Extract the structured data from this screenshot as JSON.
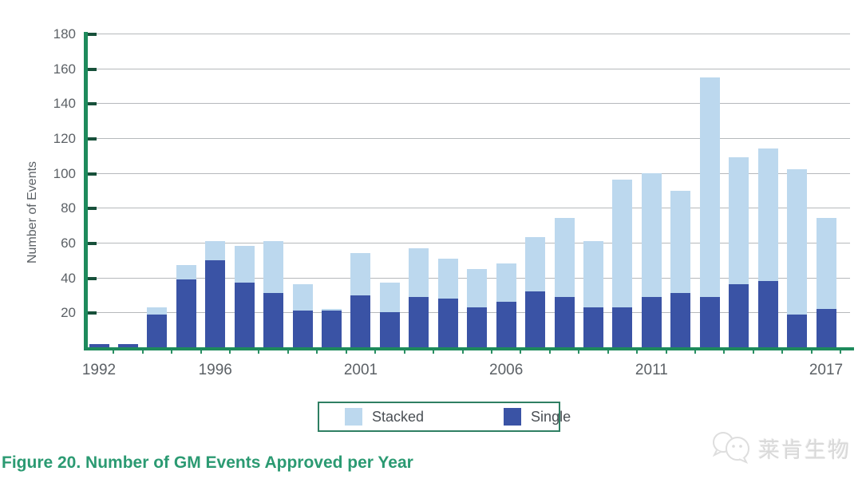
{
  "figure": {
    "caption": "Figure 20. Number of GM Events Approved per Year",
    "watermark_text": "莱肯生物"
  },
  "legend": {
    "stacked_label": "Stacked",
    "single_label": "Single"
  },
  "colors": {
    "stacked": "#bcd8ee",
    "single": "#3a53a5",
    "axis_green": "#1e8a5c",
    "caption_green": "#2b9a72",
    "gridline": "#b6b9bc"
  },
  "chart_data": {
    "type": "bar",
    "stacked": true,
    "title": "Figure 20. Number of GM Events Approved per Year",
    "xlabel": "",
    "ylabel": "Number of Events",
    "ylim": [
      0,
      180
    ],
    "ytick_interval": 20,
    "yticks": [
      20,
      40,
      60,
      80,
      100,
      120,
      140,
      160,
      180
    ],
    "grid": true,
    "legend_position": "bottom",
    "categories": [
      1992,
      1993,
      1994,
      1995,
      1996,
      1997,
      1998,
      1999,
      2000,
      2001,
      2002,
      2003,
      2004,
      2005,
      2006,
      2007,
      2008,
      2009,
      2010,
      2011,
      2012,
      2013,
      2014,
      2015,
      2016,
      2017
    ],
    "xtick_labels": [
      {
        "index": 0,
        "text": "1992"
      },
      {
        "index": 4,
        "text": "1996"
      },
      {
        "index": 9,
        "text": "2001"
      },
      {
        "index": 14,
        "text": "2006"
      },
      {
        "index": 19,
        "text": "2011"
      },
      {
        "index": 25,
        "text": "2017"
      }
    ],
    "series": [
      {
        "name": "Single",
        "color": "#3a53a5",
        "values": [
          2,
          2,
          19,
          39,
          50,
          37,
          31,
          21,
          21,
          30,
          20,
          29,
          28,
          23,
          26,
          32,
          29,
          23,
          23,
          29,
          31,
          29,
          36,
          38,
          19,
          22
        ]
      },
      {
        "name": "Stacked",
        "color": "#bcd8ee",
        "values": [
          0,
          0,
          4,
          8,
          11,
          21,
          30,
          15,
          1,
          24,
          17,
          28,
          23,
          22,
          22,
          31,
          45,
          38,
          73,
          71,
          59,
          126,
          73,
          76,
          83,
          52
        ]
      }
    ],
    "totals": [
      2,
      2,
      23,
      47,
      61,
      58,
      61,
      36,
      22,
      54,
      37,
      57,
      51,
      45,
      48,
      63,
      74,
      61,
      96,
      100,
      90,
      155,
      109,
      114,
      102,
      74
    ]
  }
}
